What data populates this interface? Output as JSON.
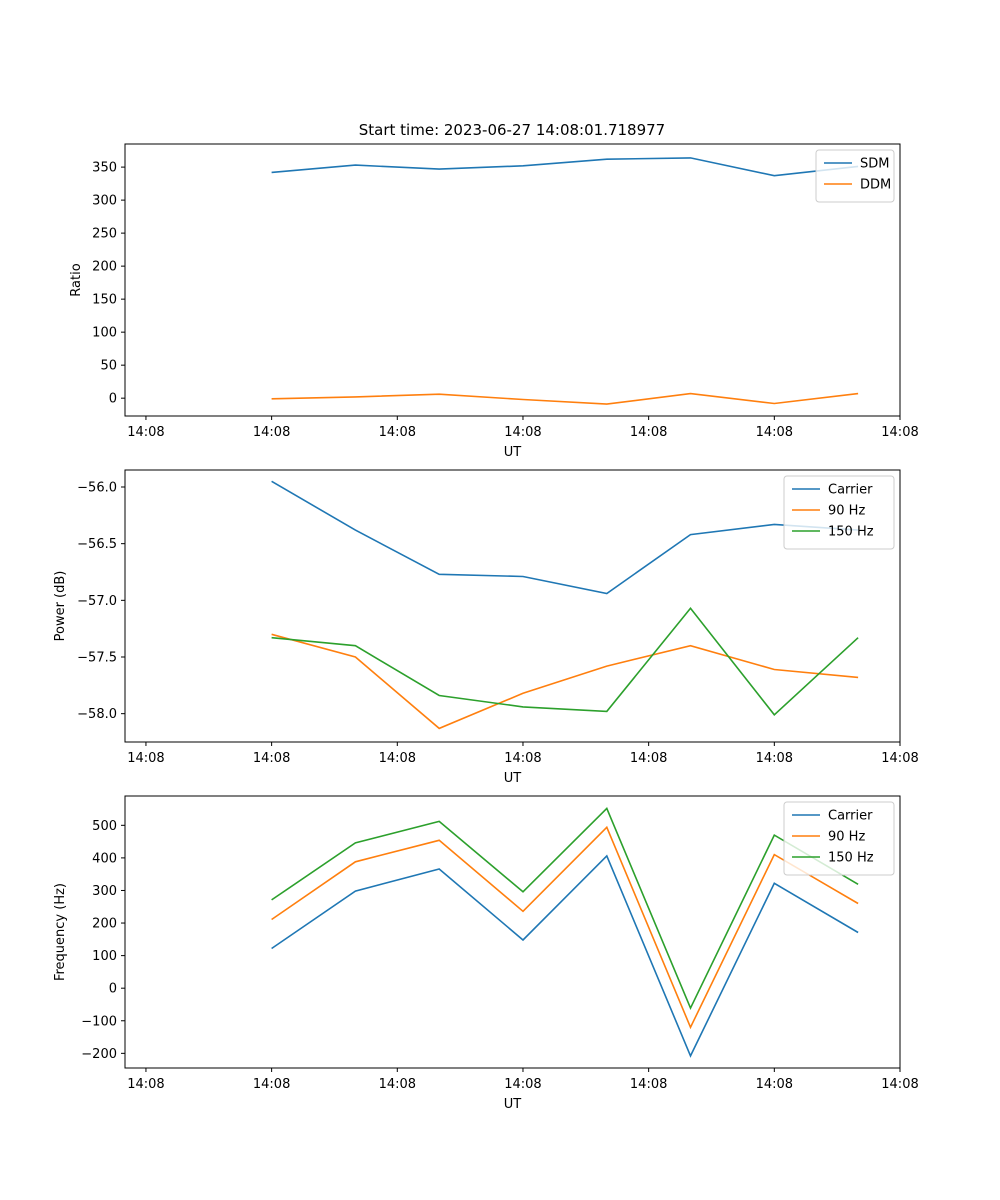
{
  "title": "Start time: 2023-06-27 14:08:01.718977",
  "chart_data": [
    {
      "type": "line",
      "title": "Start time: 2023-06-27 14:08:01.718977",
      "xlabel": "UT",
      "ylabel": "Ratio",
      "x": [
        1,
        2,
        3,
        4,
        5,
        6,
        7,
        8
      ],
      "xlim": [
        -0.75,
        8.5
      ],
      "x_ticks": [
        -0.5,
        1.5,
        3.5,
        5.5,
        7.5
      ],
      "x_tick_labels": [
        "14:08",
        "14:08",
        "14:08",
        "14:08",
        "14:08",
        "14:08",
        "14:08"
      ],
      "x_tick_positions": [
        -0.5,
        1.0,
        2.5,
        4.0,
        5.5,
        7.0,
        8.5
      ],
      "ylim": [
        -27,
        385
      ],
      "y_ticks": [
        0,
        50,
        100,
        150,
        200,
        250,
        300,
        350
      ],
      "y_tick_labels": [
        "0",
        "50",
        "100",
        "150",
        "200",
        "250",
        "300",
        "350"
      ],
      "grid": false,
      "legend": "top-right",
      "series": [
        {
          "name": "SDM",
          "color": "#1f77b4",
          "values": [
            342,
            353,
            347,
            352,
            362,
            364,
            337,
            351
          ]
        },
        {
          "name": "DDM",
          "color": "#ff7f0e",
          "values": [
            -1,
            2,
            6,
            -2,
            -9,
            7,
            -8,
            7
          ]
        }
      ]
    },
    {
      "type": "line",
      "xlabel": "UT",
      "ylabel": "Power (dB)",
      "x": [
        1,
        2,
        3,
        4,
        5,
        6,
        7,
        8
      ],
      "x_tick_labels": [
        "14:08",
        "14:08",
        "14:08",
        "14:08",
        "14:08",
        "14:08",
        "14:08"
      ],
      "x_tick_positions": [
        -0.5,
        1.0,
        2.5,
        4.0,
        5.5,
        7.0,
        8.5
      ],
      "xlim": [
        -0.75,
        8.5
      ],
      "ylim": [
        -58.25,
        -55.85
      ],
      "y_ticks": [
        -56.0,
        -56.5,
        -57.0,
        -57.5,
        -58.0
      ],
      "y_tick_labels": [
        "−56.0",
        "−56.5",
        "−57.0",
        "−57.5",
        "−58.0"
      ],
      "grid": false,
      "legend": "top-right",
      "series": [
        {
          "name": "Carrier",
          "color": "#1f77b4",
          "values": [
            -55.95,
            -56.38,
            -56.77,
            -56.79,
            -56.94,
            -56.42,
            -56.33,
            -56.38
          ]
        },
        {
          "name": "90 Hz",
          "color": "#ff7f0e",
          "values": [
            -57.3,
            -57.5,
            -58.13,
            -57.82,
            -57.58,
            -57.4,
            -57.61,
            -57.68
          ]
        },
        {
          "name": "150 Hz",
          "color": "#2ca02c",
          "values": [
            -57.33,
            -57.4,
            -57.84,
            -57.94,
            -57.98,
            -57.07,
            -58.01,
            -57.33
          ]
        }
      ]
    },
    {
      "type": "line",
      "xlabel": "UT",
      "ylabel": "Frequency (Hz)",
      "x": [
        1,
        2,
        3,
        4,
        5,
        6,
        7,
        8
      ],
      "x_tick_labels": [
        "14:08",
        "14:08",
        "14:08",
        "14:08",
        "14:08",
        "14:08",
        "14:08"
      ],
      "x_tick_positions": [
        -0.5,
        1.0,
        2.5,
        4.0,
        5.5,
        7.0,
        8.5
      ],
      "xlim": [
        -0.75,
        8.5
      ],
      "ylim": [
        -245,
        590
      ],
      "y_ticks": [
        500,
        400,
        300,
        200,
        100,
        0,
        -100,
        -200
      ],
      "y_tick_labels": [
        "500",
        "400",
        "300",
        "200",
        "100",
        "0",
        "−100",
        "−200"
      ],
      "grid": false,
      "legend": "top-right",
      "series": [
        {
          "name": "Carrier",
          "color": "#1f77b4",
          "values": [
            122,
            298,
            366,
            148,
            406,
            -208,
            322,
            171
          ]
        },
        {
          "name": "90 Hz",
          "color": "#ff7f0e",
          "values": [
            211,
            388,
            454,
            236,
            494,
            -120,
            410,
            260
          ]
        },
        {
          "name": "150 Hz",
          "color": "#2ca02c",
          "values": [
            271,
            446,
            512,
            296,
            552,
            -61,
            470,
            319
          ]
        }
      ]
    }
  ]
}
